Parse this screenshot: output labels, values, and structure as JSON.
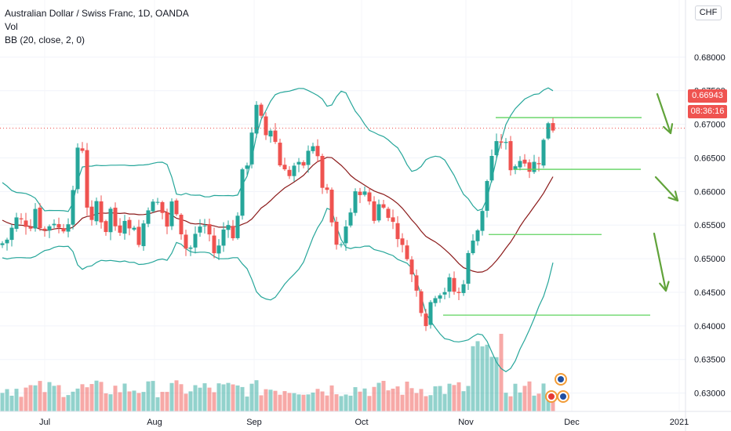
{
  "legend": {
    "title": "Australian Dollar / Swiss Franc, 1D, OANDA",
    "vol": "Vol",
    "bb": "BB (20, close, 2, 0)"
  },
  "currency_button": "CHF",
  "price_label": "0.66943",
  "countdown_label": "08:36:16",
  "colors": {
    "up": "#26a69a",
    "down": "#ef5350",
    "bb_band": "#26a69a",
    "bb_basis": "#8b1a1a",
    "annotation": "#5fd35f",
    "arrow": "#61a33a"
  },
  "chart_data": {
    "type": "candlestick",
    "title": "Australian Dollar / Swiss Franc, 1D, OANDA",
    "ylim": [
      0.6275,
      0.6885
    ],
    "y_ticks": [
      "0.68000",
      "0.67500",
      "0.67000",
      "0.66500",
      "0.66000",
      "0.65500",
      "0.65000",
      "0.64500",
      "0.64000",
      "0.63500",
      "0.63000"
    ],
    "x_ticks": [
      "Jul",
      "Aug",
      "Sep",
      "Oct",
      "Nov",
      "Dec",
      "2021"
    ],
    "series": [
      {
        "name": "Vol",
        "type": "volume"
      },
      {
        "name": "BB (20, close, 2, 0)",
        "type": "bollinger"
      }
    ],
    "ohlc_sample": [
      {
        "period": "Jul",
        "close": 0.653
      },
      {
        "period": "Aug",
        "close": 0.656
      },
      {
        "period": "Sep",
        "close": 0.67
      },
      {
        "period": "Oct",
        "close": 0.654
      },
      {
        "period": "Nov",
        "close": 0.648
      }
    ],
    "last_close": 0.66943,
    "horizontal_levels": [
      0.671,
      0.6633,
      0.6536,
      0.6416
    ],
    "annotations": [
      "3 down arrows (projection)"
    ]
  }
}
